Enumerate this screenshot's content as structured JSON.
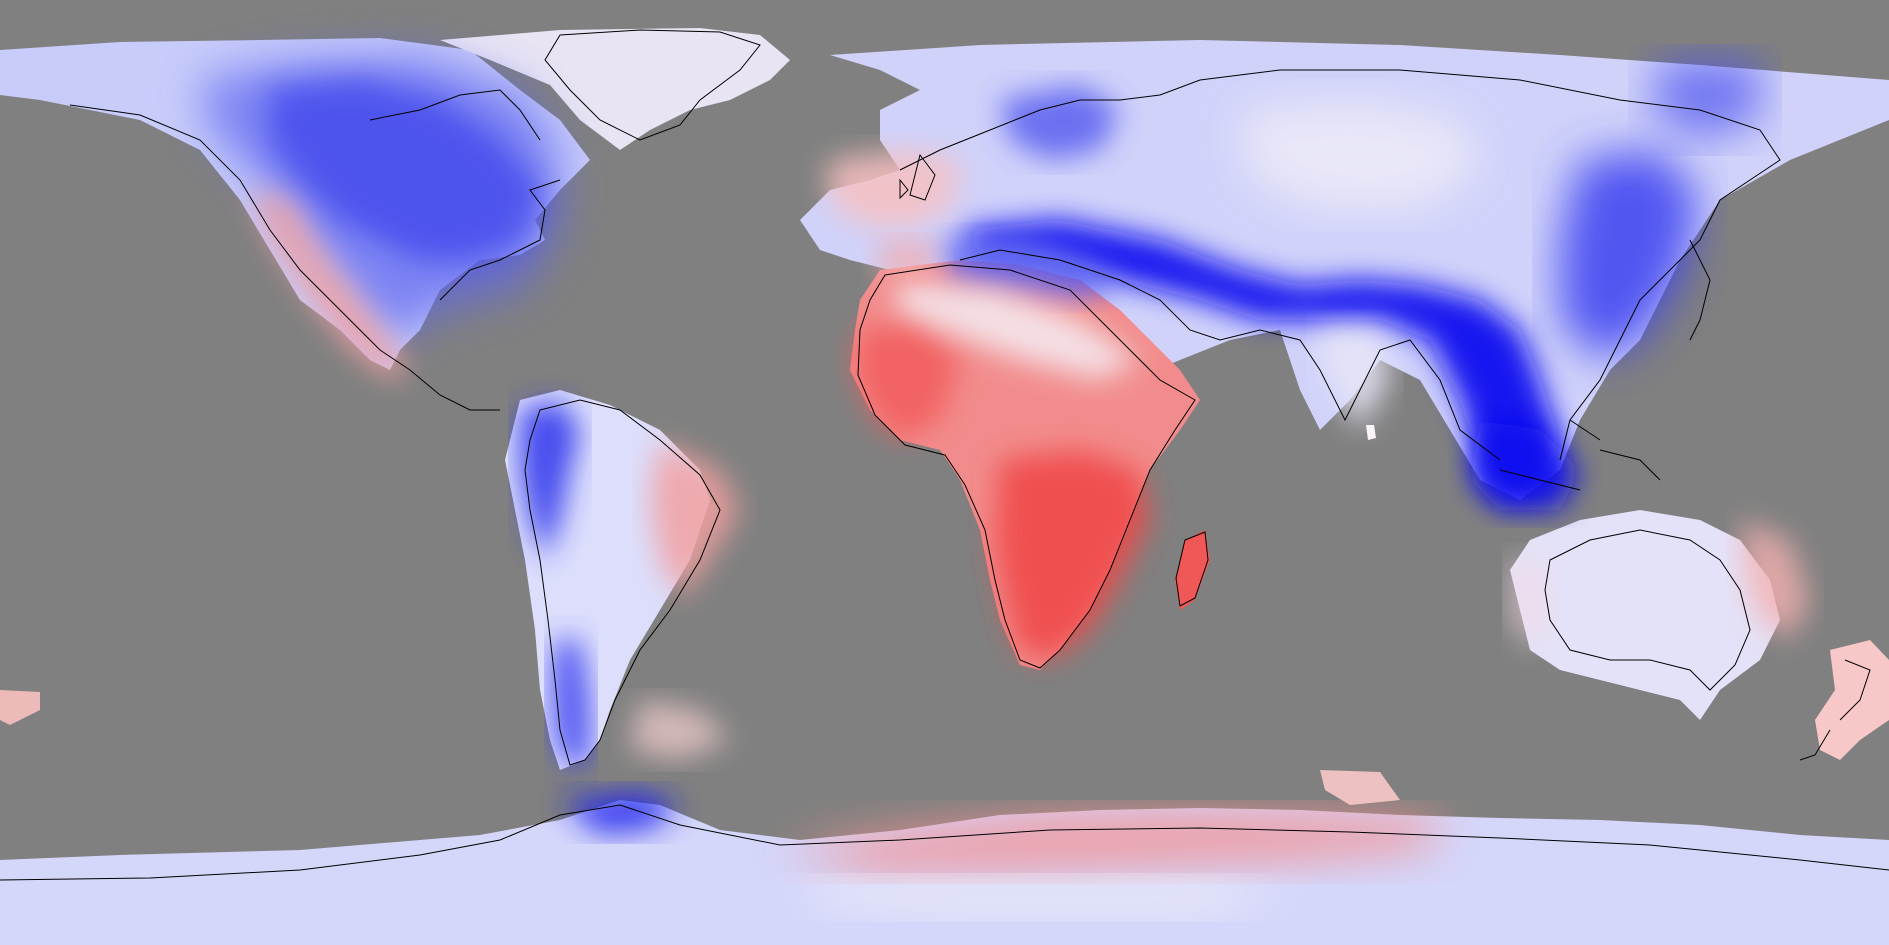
{
  "map": {
    "projection": "equirectangular",
    "background": "#808080",
    "legend": null,
    "colors": {
      "ocean": "#808080",
      "coastline": "#000000",
      "strong_blue": "#1010f0",
      "mid_blue": "#5c64f0",
      "light_blue": "#b8bcf8",
      "pale_blue": "#dcdefc",
      "near_white": "#f4f0f4",
      "light_red": "#f8c8c8",
      "mid_red": "#f28c8c",
      "strong_red": "#f05050"
    }
  }
}
